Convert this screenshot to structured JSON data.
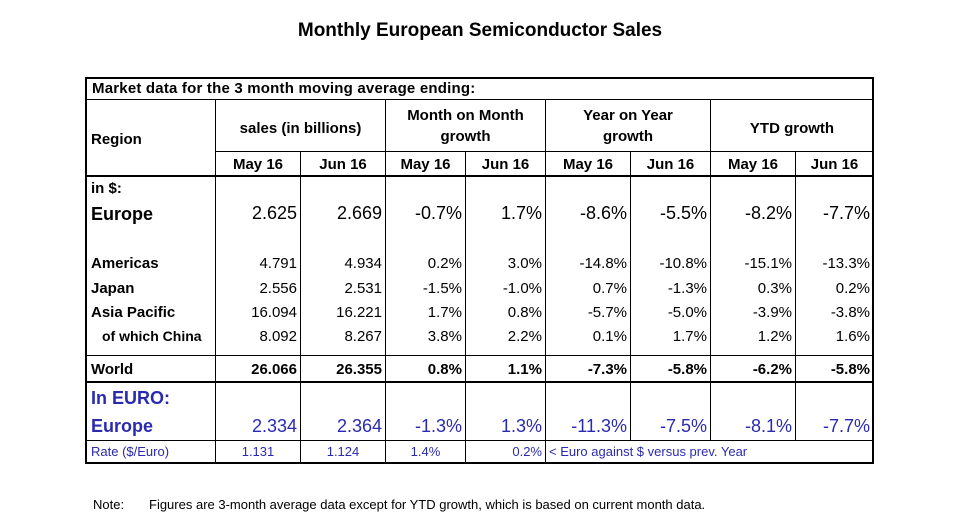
{
  "title": "Monthly European Semiconductor Sales",
  "header": {
    "market_line": "Market data for the 3 month moving average ending:",
    "region": "Region",
    "sales": "sales (in billions)",
    "mom_1": "Month on Month",
    "mom_2": "growth",
    "yoy_1": "Year on Year",
    "yoy_2": "growth",
    "ytd": "YTD growth",
    "months": [
      "May 16",
      "Jun 16",
      "May 16",
      "Jun 16",
      "May 16",
      "Jun 16",
      "May 16",
      "Jun 16"
    ]
  },
  "in_dollars_label": "in $:",
  "rows": [
    {
      "region": "Europe",
      "values": [
        "2.625",
        "2.669",
        "-0.7%",
        "1.7%",
        "-8.6%",
        "-5.5%",
        "-8.2%",
        "-7.7%"
      ]
    },
    {
      "region": "Americas",
      "values": [
        "4.791",
        "4.934",
        "0.2%",
        "3.0%",
        "-14.8%",
        "-10.8%",
        "-15.1%",
        "-13.3%"
      ]
    },
    {
      "region": "Japan",
      "values": [
        "2.556",
        "2.531",
        "-1.5%",
        "-1.0%",
        "0.7%",
        "-1.3%",
        "0.3%",
        "0.2%"
      ]
    },
    {
      "region": "Asia Pacific",
      "values": [
        "16.094",
        "16.221",
        "1.7%",
        "0.8%",
        "-5.7%",
        "-5.0%",
        "-3.9%",
        "-3.8%"
      ]
    },
    {
      "region": "of which China",
      "values": [
        "8.092",
        "8.267",
        "3.8%",
        "2.2%",
        "0.1%",
        "1.7%",
        "1.2%",
        "1.6%"
      ]
    },
    {
      "region": "World",
      "values": [
        "26.066",
        "26.355",
        "0.8%",
        "1.1%",
        "-7.3%",
        "-5.8%",
        "-6.2%",
        "-5.8%"
      ]
    }
  ],
  "euro": {
    "label": "In EURO:",
    "region": "Europe",
    "values": [
      "2.334",
      "2.364",
      "-1.3%",
      "1.3%",
      "-11.3%",
      "-7.5%",
      "-8.1%",
      "-7.7%"
    ]
  },
  "rate": {
    "label": "Rate ($/Euro)",
    "values": [
      "1.131",
      "1.124",
      "1.4%",
      "0.2%"
    ],
    "comment": "< Euro against $ versus prev. Year"
  },
  "note": {
    "label": "Note:",
    "text": "Figures are 3-month average data except for YTD growth, which is based on current month data."
  },
  "colors": {
    "euro_text": "#2a2ab0"
  }
}
